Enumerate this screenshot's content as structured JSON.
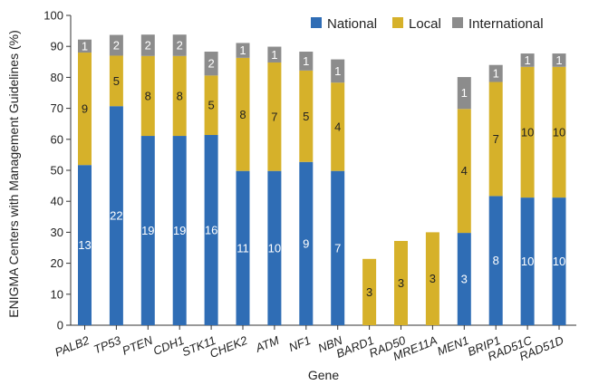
{
  "chart_data": {
    "type": "bar",
    "stacked": true,
    "xlabel": "Gene",
    "ylabel": "ENIGMA Centers with Management Guidelines (%)",
    "ylim": [
      0,
      100
    ],
    "yticks": [
      0,
      10,
      20,
      30,
      40,
      50,
      60,
      70,
      80,
      90,
      100
    ],
    "legend_position": "top-right",
    "categories": [
      "PALB2",
      "TP53",
      "PTEN",
      "CDH1",
      "STK11",
      "CHEK2",
      "ATM",
      "NF1",
      "NBN",
      "BARD1",
      "RAD50",
      "MRE11A",
      "MEN1",
      "BRIP1",
      "RAD51C",
      "RAD51D"
    ],
    "series": [
      {
        "name": "National",
        "color": "#2f6db5",
        "label_color": "#ffffff",
        "values": [
          51.7,
          70.7,
          61.1,
          61.1,
          61.4,
          49.8,
          49.8,
          52.7,
          49.8,
          0,
          0,
          0,
          29.8,
          41.7,
          41.2,
          41.2
        ],
        "labels": [
          "13",
          "22",
          "19",
          "19",
          "16",
          "11",
          "10",
          "9",
          "7",
          "",
          "",
          "",
          "3",
          "8",
          "10",
          "10"
        ]
      },
      {
        "name": "Local",
        "color": "#d6b12a",
        "label_color": "#222222",
        "values": [
          36.3,
          16.3,
          25.8,
          25.8,
          19.2,
          36.5,
          35.0,
          29.5,
          28.5,
          21.4,
          27.2,
          30.0,
          40.0,
          36.8,
          42.2,
          42.2
        ],
        "labels": [
          "9",
          "5",
          "8",
          "8",
          "5",
          "8",
          "7",
          "5",
          "4",
          "3",
          "3",
          "3",
          "4",
          "7",
          "10",
          "10"
        ]
      },
      {
        "name": "International",
        "color": "#8c8c8c",
        "label_color": "#ffffff",
        "values": [
          4.2,
          6.7,
          6.9,
          6.9,
          7.7,
          4.8,
          5.1,
          6.1,
          7.5,
          0,
          0,
          0,
          10.3,
          5.5,
          4.3,
          4.3
        ],
        "labels": [
          "1",
          "2",
          "2",
          "2",
          "2",
          "1",
          "1",
          "1",
          "1",
          "",
          "",
          "",
          "1",
          "1",
          "1",
          "1"
        ]
      }
    ]
  }
}
